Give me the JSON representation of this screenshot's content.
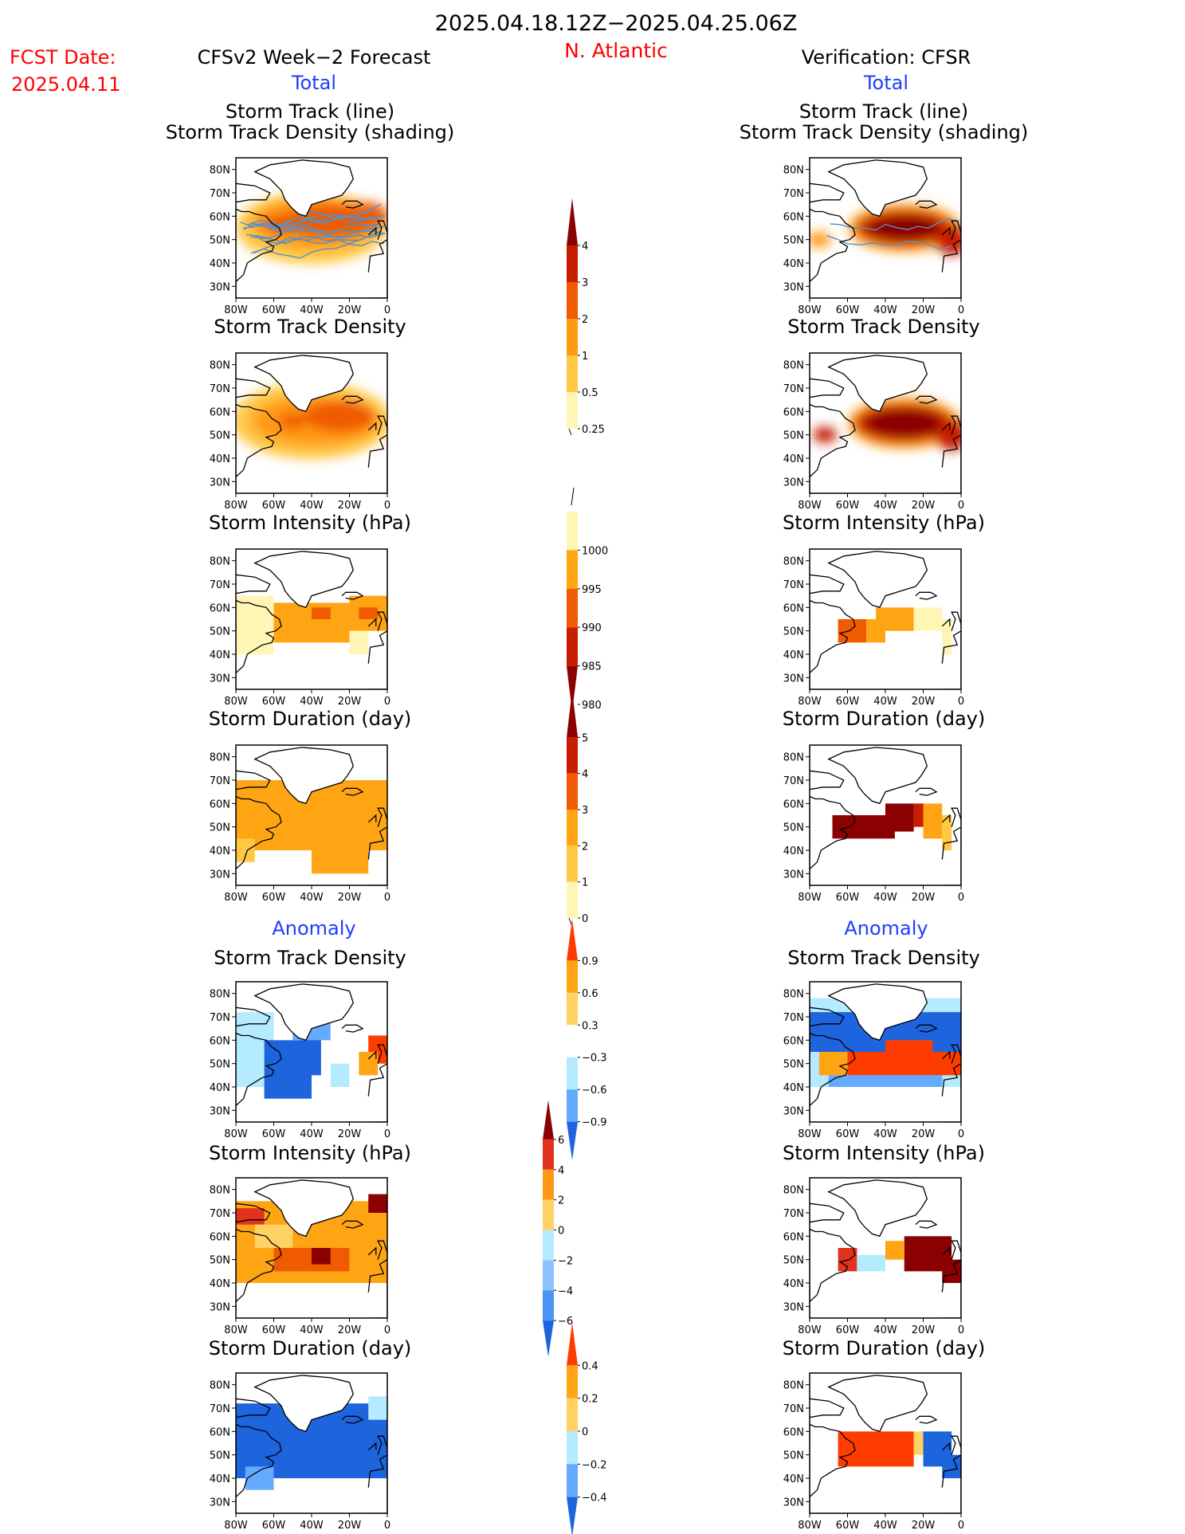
{
  "header": {
    "period": "2025.04.18.12Z−2025.04.25.06Z",
    "fcst_label": "FCST Date:",
    "fcst_date": "2025.04.11",
    "region": "N. Atlantic",
    "left_title": "CFSv2 Week−2 Forecast",
    "right_title": "Verification: CFSR",
    "left_sub": "Total",
    "right_sub": "Total"
  },
  "anomaly_left": "Anomaly",
  "anomaly_right": "Anomaly",
  "colors": {
    "title_red": "#ff0000",
    "sub_blue": "#1e3cff",
    "water_blue": "#1b5fd6"
  },
  "panel_axes": {
    "lat_ticks": [
      "30N",
      "40N",
      "50N",
      "60N",
      "70N",
      "80N"
    ],
    "lon_ticks": [
      "80W",
      "60W",
      "40W",
      "20W",
      "0"
    ]
  },
  "panels": [
    {
      "title1": "Storm Track (line)",
      "title2": "Storm Track Density (shading)"
    },
    {
      "title1": "Storm Track Density"
    },
    {
      "title1": "Storm Intensity (hPa)"
    },
    {
      "title1": "Storm Duration (day)"
    },
    {
      "title1": "Storm Track Density"
    },
    {
      "title1": "Storm Intensity (hPa)"
    },
    {
      "title1": "Storm Duration (day)"
    }
  ],
  "colorbars": [
    {
      "name": "density",
      "labels": [
        "4",
        "3",
        "2",
        "1",
        "0.5",
        "0.25"
      ],
      "colors": [
        "#8b0000",
        "#c81e00",
        "#f05a00",
        "#ff9a14",
        "#ffc845",
        "#fff5b4"
      ]
    },
    {
      "name": "intensity",
      "labels": [
        "1000",
        "995",
        "990",
        "985",
        "980"
      ],
      "colors": [
        "#fff5b4",
        "#ffa514",
        "#f05a00",
        "#c81e00",
        "#8b0000"
      ]
    },
    {
      "name": "duration",
      "labels": [
        "5",
        "4",
        "3",
        "2",
        "1",
        "0"
      ],
      "colors": [
        "#8b0000",
        "#c81e00",
        "#f05a00",
        "#ffa514",
        "#ffc845",
        "#fff5b4"
      ]
    },
    {
      "name": "density_anom",
      "labels": [
        "0.9",
        "0.6",
        "0.3",
        "−0.3",
        "−0.6",
        "−0.9"
      ],
      "colors": [
        "#ff3c00",
        "#ffa514",
        "#ffd264",
        "#ffffff",
        "#b4ebff",
        "#64aaff",
        "#1e64dc"
      ]
    },
    {
      "name": "intensity_anom",
      "labels": [
        "6",
        "4",
        "2",
        "0",
        "−2",
        "−4",
        "−6"
      ],
      "colors": [
        "#8b0000",
        "#e1321e",
        "#ff9a14",
        "#ffd264",
        "#b4ebff",
        "#8cc3ff",
        "#4b96f5",
        "#1e64dc"
      ]
    },
    {
      "name": "duration_anom",
      "labels": [
        "0.4",
        "0.2",
        "0",
        "−0.2",
        "−0.4"
      ],
      "colors": [
        "#ff3c00",
        "#ffa514",
        "#ffd264",
        "#b4ebff",
        "#64aaff",
        "#1e64dc"
      ]
    }
  ],
  "chart_data": {
    "type": "heatmap",
    "description_of_layout": "7 rows x 2 columns of North Atlantic maps (lat 25N-85N, lon 80W-0)",
    "lat_range": [
      25,
      85
    ],
    "lon_range": [
      -80,
      0
    ],
    "rows": [
      "Storm Track (line) / Storm Track Density (shading)",
      "Storm Track Density",
      "Storm Intensity (hPa)",
      "Storm Duration (day)",
      "Storm Track Density anomaly",
      "Storm Intensity anomaly (hPa)",
      "Storm Duration anomaly (day)"
    ],
    "columns": [
      "CFSv2 Week-2 Forecast",
      "Verification: CFSR"
    ]
  }
}
